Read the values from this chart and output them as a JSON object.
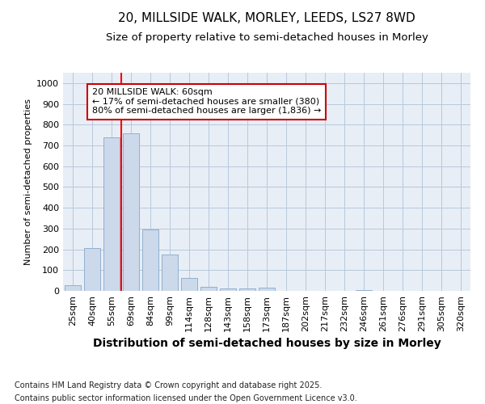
{
  "title_line1": "20, MILLSIDE WALK, MORLEY, LEEDS, LS27 8WD",
  "title_line2": "Size of property relative to semi-detached houses in Morley",
  "xlabel": "Distribution of semi-detached houses by size in Morley",
  "ylabel": "Number of semi-detached properties",
  "categories": [
    "25sqm",
    "40sqm",
    "55sqm",
    "69sqm",
    "84sqm",
    "99sqm",
    "114sqm",
    "128sqm",
    "143sqm",
    "158sqm",
    "173sqm",
    "187sqm",
    "202sqm",
    "217sqm",
    "232sqm",
    "246sqm",
    "261sqm",
    "276sqm",
    "291sqm",
    "305sqm",
    "320sqm"
  ],
  "values": [
    28,
    205,
    740,
    758,
    295,
    175,
    62,
    18,
    13,
    12,
    15,
    0,
    0,
    0,
    0,
    5,
    0,
    0,
    0,
    0,
    0
  ],
  "bar_color": "#ccd9eb",
  "bar_edgecolor": "#85a8cc",
  "grid_color": "#b8c8dc",
  "background_color": "#e8eef6",
  "redline_x": 2.5,
  "annotation_text": "20 MILLSIDE WALK: 60sqm\n← 17% of semi-detached houses are smaller (380)\n80% of semi-detached houses are larger (1,836) →",
  "annotation_box_facecolor": "#ffffff",
  "annotation_box_edgecolor": "#cc0000",
  "ylim": [
    0,
    1050
  ],
  "yticks": [
    0,
    100,
    200,
    300,
    400,
    500,
    600,
    700,
    800,
    900,
    1000
  ],
  "footnote1": "Contains HM Land Registry data © Crown copyright and database right 2025.",
  "footnote2": "Contains public sector information licensed under the Open Government Licence v3.0.",
  "title_fontsize": 11,
  "subtitle_fontsize": 9.5,
  "xlabel_fontsize": 10,
  "ylabel_fontsize": 8,
  "tick_fontsize": 8,
  "footnote_fontsize": 7,
  "annotation_fontsize": 8
}
